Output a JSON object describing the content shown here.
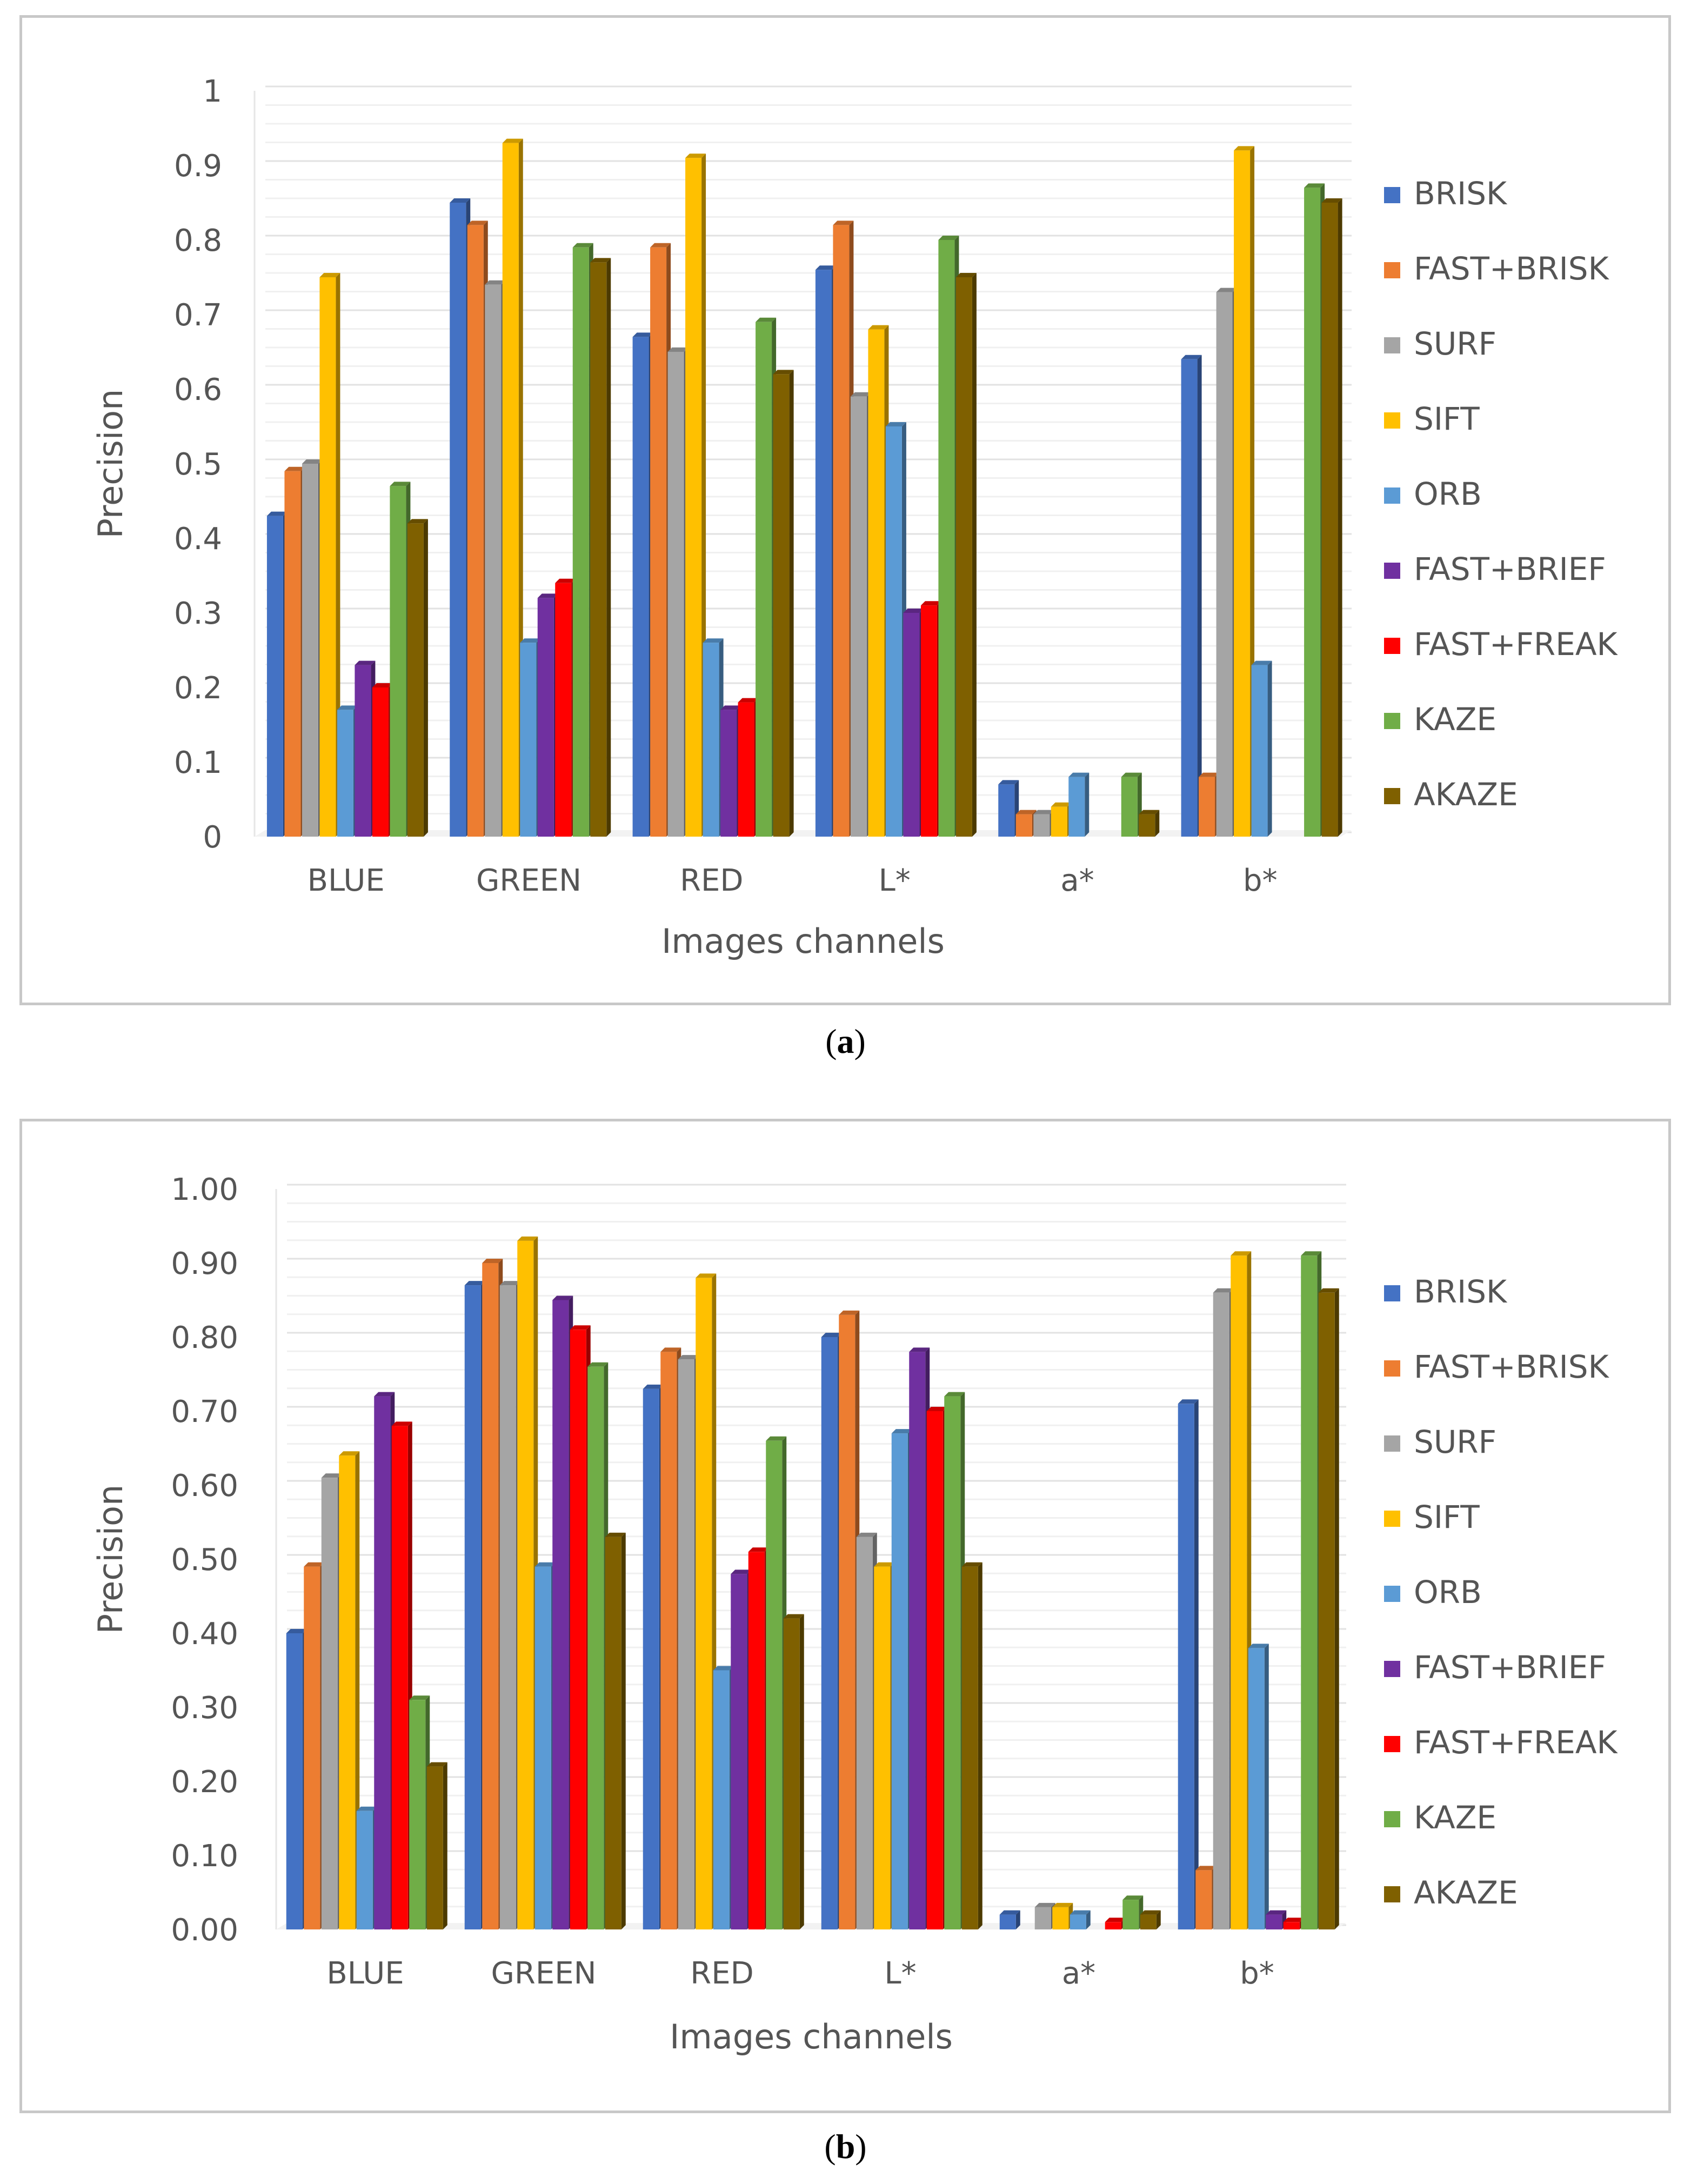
{
  "chart_data": [
    {
      "id": "a",
      "type": "bar",
      "caption_letter": "a",
      "xlabel": "Images channels",
      "ylabel": "Precision",
      "ylim": [
        0,
        1
      ],
      "ytick_labels": [
        "0",
        "0.1",
        "0.2",
        "0.3",
        "0.4",
        "0.5",
        "0.6",
        "0.7",
        "0.8",
        "0.9",
        "1"
      ],
      "legend_position": "right",
      "categories": [
        "BLUE",
        "GREEN",
        "RED",
        "L*",
        "a*",
        "b*"
      ],
      "series": [
        {
          "name": "BRISK",
          "color": "#4472C4",
          "values": [
            0.43,
            0.85,
            0.67,
            0.76,
            0.07,
            0.64
          ]
        },
        {
          "name": "FAST+BRISK",
          "color": "#ED7D31",
          "values": [
            0.49,
            0.82,
            0.79,
            0.82,
            0.03,
            0.08
          ]
        },
        {
          "name": "SURF",
          "color": "#A5A5A5",
          "values": [
            0.5,
            0.74,
            0.65,
            0.59,
            0.03,
            0.73
          ]
        },
        {
          "name": "SIFT",
          "color": "#FFC000",
          "values": [
            0.75,
            0.93,
            0.91,
            0.68,
            0.04,
            0.92
          ]
        },
        {
          "name": "ORB",
          "color": "#5B9BD5",
          "values": [
            0.17,
            0.26,
            0.26,
            0.55,
            0.08,
            0.23
          ]
        },
        {
          "name": "FAST+BRIEF",
          "color": "#7030A0",
          "values": [
            0.23,
            0.32,
            0.17,
            0.3,
            0.0,
            0.0
          ]
        },
        {
          "name": "FAST+FREAK",
          "color": "#FF0000",
          "values": [
            0.2,
            0.34,
            0.18,
            0.31,
            0.0,
            0.0
          ]
        },
        {
          "name": "KAZE",
          "color": "#70AD47",
          "values": [
            0.47,
            0.79,
            0.69,
            0.8,
            0.08,
            0.87
          ]
        },
        {
          "name": "AKAZE",
          "color": "#7F6000",
          "values": [
            0.42,
            0.77,
            0.62,
            0.75,
            0.03,
            0.85
          ]
        }
      ]
    },
    {
      "id": "b",
      "type": "bar",
      "caption_letter": "b",
      "xlabel": "Images channels",
      "ylabel": "Precision",
      "ylim": [
        0,
        1
      ],
      "ytick_labels": [
        "0.00",
        "0.10",
        "0.20",
        "0.30",
        "0.40",
        "0.50",
        "0.60",
        "0.70",
        "0.80",
        "0.90",
        "1.00"
      ],
      "legend_position": "right",
      "categories": [
        "BLUE",
        "GREEN",
        "RED",
        "L*",
        "a*",
        "b*"
      ],
      "series": [
        {
          "name": "BRISK",
          "color": "#4472C4",
          "values": [
            0.4,
            0.87,
            0.73,
            0.8,
            0.02,
            0.71
          ]
        },
        {
          "name": "FAST+BRISK",
          "color": "#ED7D31",
          "values": [
            0.49,
            0.9,
            0.78,
            0.83,
            0.0,
            0.08
          ]
        },
        {
          "name": "SURF",
          "color": "#A5A5A5",
          "values": [
            0.61,
            0.87,
            0.77,
            0.53,
            0.03,
            0.86
          ]
        },
        {
          "name": "SIFT",
          "color": "#FFC000",
          "values": [
            0.64,
            0.93,
            0.88,
            0.49,
            0.03,
            0.91
          ]
        },
        {
          "name": "ORB",
          "color": "#5B9BD5",
          "values": [
            0.16,
            0.49,
            0.35,
            0.67,
            0.02,
            0.38
          ]
        },
        {
          "name": "FAST+BRIEF",
          "color": "#7030A0",
          "values": [
            0.72,
            0.85,
            0.48,
            0.78,
            0.0,
            0.02
          ]
        },
        {
          "name": "FAST+FREAK",
          "color": "#FF0000",
          "values": [
            0.68,
            0.81,
            0.51,
            0.7,
            0.01,
            0.01
          ]
        },
        {
          "name": "KAZE",
          "color": "#70AD47",
          "values": [
            0.31,
            0.76,
            0.66,
            0.72,
            0.04,
            0.91
          ]
        },
        {
          "name": "AKAZE",
          "color": "#7F6000",
          "values": [
            0.22,
            0.53,
            0.42,
            0.49,
            0.02,
            0.86
          ]
        }
      ]
    }
  ]
}
